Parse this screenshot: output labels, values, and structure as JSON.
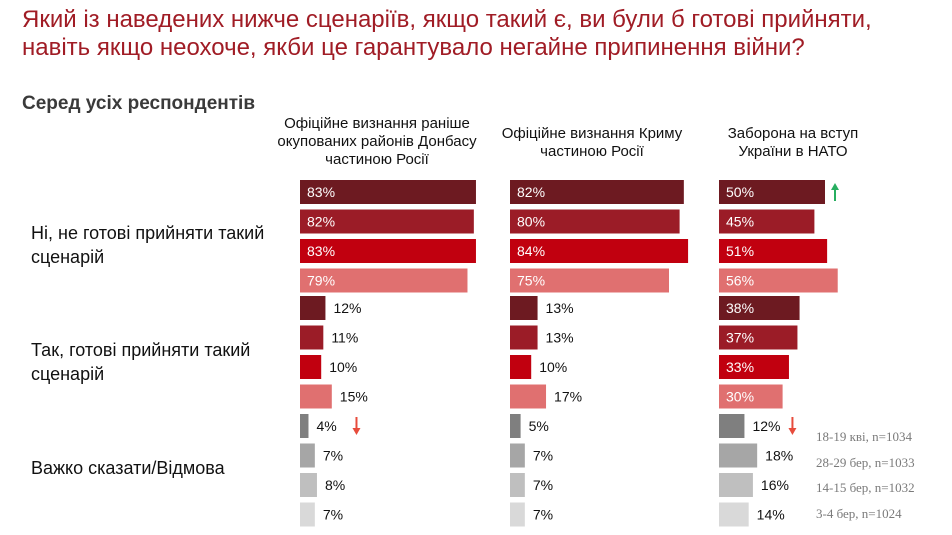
{
  "title": "Який із наведених нижче сценаріїв, якщо такий є, ви були б готові прийняти, навіть якщо неохоче, якби це гарантувало негайне припинення війни?",
  "subtitle": "Серед усіх респондентів",
  "chart_data": {
    "type": "bar",
    "orientation": "horizontal",
    "columns": [
      "Офіційне визнання раніше окупованих районів Донбасу частиною Росії",
      "Офіційне визнання Криму частиною Росії",
      "Заборона на вступ України в НАТО"
    ],
    "categories": [
      "Ні, не готові прийняти такий сценарій",
      "Так, готові прийняти такий сценарій",
      "Важко сказати/Відмова"
    ],
    "series": [
      {
        "name": "18-19 кві, n=1034",
        "values": [
          [
            83,
            82,
            50
          ],
          [
            12,
            13,
            38
          ],
          [
            4,
            5,
            12
          ]
        ]
      },
      {
        "name": "28-29 бер, n=1033",
        "values": [
          [
            82,
            80,
            45
          ],
          [
            11,
            13,
            37
          ],
          [
            7,
            7,
            18
          ]
        ]
      },
      {
        "name": "14-15 бер, n=1032",
        "values": [
          [
            83,
            84,
            51
          ],
          [
            10,
            10,
            33
          ],
          [
            8,
            7,
            16
          ]
        ]
      },
      {
        "name": "3-4 бер, n=1024",
        "values": [
          [
            79,
            75,
            56
          ],
          [
            15,
            17,
            30
          ],
          [
            7,
            7,
            14
          ]
        ]
      }
    ],
    "value_suffix": "%",
    "annotations": [
      {
        "column": 2,
        "category": 0,
        "series": 0,
        "marker": "arrow-up",
        "color": "#27ae60"
      },
      {
        "column": 0,
        "category": 2,
        "series": 0,
        "marker": "arrow-down",
        "color": "#e74c3c"
      },
      {
        "column": 2,
        "category": 2,
        "series": 0,
        "marker": "arrow-down",
        "color": "#e74c3c"
      }
    ],
    "colors": {
      "no": [
        "#6d1a21",
        "#9b1c27",
        "#c1000f",
        "#e07070"
      ],
      "yes": [
        "#6d1a21",
        "#9b1c27",
        "#c1000f",
        "#e07070"
      ],
      "unsure": [
        "#7f7f7f",
        "#a6a6a6",
        "#bfbfbf",
        "#d9d9d9"
      ]
    }
  }
}
